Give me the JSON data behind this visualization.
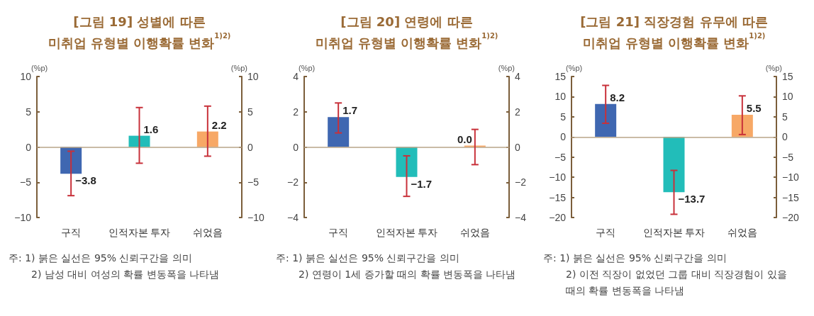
{
  "chart_data": [
    {
      "type": "bar",
      "title": "[그림 19] 성별에 따른\n미취업 유형별 이행확률 변화$^{1)2)}$",
      "ylabel": "(%p)",
      "y2label": "(%p)",
      "categories": [
        "구직",
        "인적자본 투자",
        "쉬었음"
      ],
      "values": [
        -3.8,
        1.6,
        2.2
      ],
      "colors": [
        "#3f67b1",
        "#22bdb9",
        "#f7a866"
      ],
      "errors": [
        [
          -6.9,
          -0.6
        ],
        [
          -2.3,
          5.6
        ],
        [
          -1.3,
          5.8
        ]
      ],
      "data_labels": true,
      "ref_lines": [
        {
          "axis": "y",
          "value": 0,
          "color": "#b8a488"
        }
      ],
      "ylim": [
        -10,
        10
      ],
      "yticks": [
        -10,
        -5,
        0,
        5,
        10
      ],
      "y2lim": [
        -10,
        10
      ],
      "y2ticks": [
        -10,
        -5,
        0,
        5,
        10
      ],
      "annotations": [
        "주: 1) 붉은 실선은 95% 신뢰구간을 의미",
        "2) 남성 대비 여성의 확률 변동폭을 나타냄"
      ]
    },
    {
      "type": "bar",
      "title": "[그림 20] 연령에 따른\n미취업 유형별 이행확률 변화$^{1)2)}$",
      "ylabel": "(%p)",
      "y2label": "(%p)",
      "categories": [
        "구직",
        "인적자본 투자",
        "쉬었음"
      ],
      "values": [
        1.7,
        -1.7,
        0.0
      ],
      "colors": [
        "#3f67b1",
        "#22bdb9",
        "#f7a866"
      ],
      "errors": [
        [
          0.8,
          2.5
        ],
        [
          -2.8,
          -0.5
        ],
        [
          -1.0,
          1.0
        ]
      ],
      "value_labels": [
        "1.7",
        "−1.7",
        "0.0"
      ],
      "ref_lines": [
        {
          "axis": "y",
          "value": 0,
          "color": "#b8a488"
        }
      ],
      "ylim": [
        -4,
        4
      ],
      "yticks": [
        -4,
        -2,
        0,
        2,
        4
      ],
      "y2lim": [
        -4,
        4
      ],
      "y2ticks": [
        -4,
        -2,
        0,
        2,
        4
      ],
      "annotations": [
        "주: 1) 붉은 실선은 95% 신뢰구간을 의미",
        "2) 연령이 1세 증가할 때의 확률 변동폭을 나타냄"
      ]
    },
    {
      "type": "bar",
      "title": "[그림 21] 직장경험 유무에 따른\n미취업 유형별 이행확률 변화$^{1)2)}$",
      "ylabel": "(%p)",
      "y2label": "(%p)",
      "categories": [
        "구직",
        "인적자본 투자",
        "쉬었음"
      ],
      "values": [
        8.2,
        -13.7,
        5.5
      ],
      "colors": [
        "#3f67b1",
        "#22bdb9",
        "#f7a866"
      ],
      "errors": [
        [
          3.4,
          12.8
        ],
        [
          -19.2,
          -8.3
        ],
        [
          0.6,
          10.2
        ]
      ],
      "data_labels": true,
      "ref_lines": [
        {
          "axis": "y",
          "value": 0,
          "color": "#b8a488"
        }
      ],
      "ylim": [
        -20,
        15
      ],
      "yticks": [
        -20,
        -15,
        -10,
        -5,
        0,
        5,
        10,
        15
      ],
      "y2lim": [
        -20,
        15
      ],
      "y2ticks": [
        -20,
        -15,
        -10,
        -5,
        0,
        5,
        10,
        15
      ],
      "annotations": [
        "주: 1) 붉은 실선은 95% 신뢰구간을 의미",
        "2) 이전 직장이 없었던 그룹 대비 직장경험이 있을 때의 확률 변동폭을 나타냄"
      ]
    }
  ]
}
